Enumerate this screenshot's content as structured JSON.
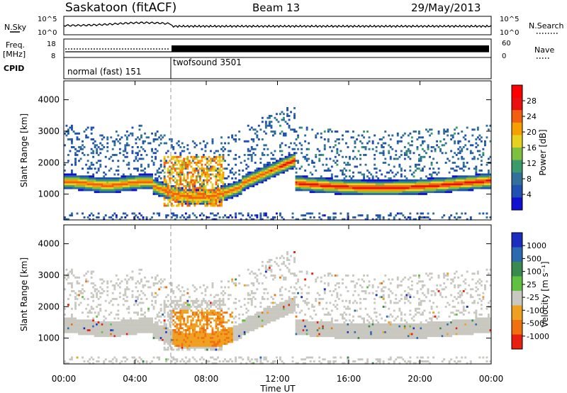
{
  "header": {
    "station": "Saskatoon (fitACF)",
    "beam": "Beam 13",
    "date": "29/May/2013"
  },
  "chart_data": [
    {
      "type": "line",
      "panel": "noise",
      "left_label": "N.Sky",
      "right_label": "N.Search",
      "left_ticks": [
        "10^5",
        "10^0"
      ],
      "right_ticks": [
        "10^5",
        "10^0"
      ]
    },
    {
      "type": "line",
      "panel": "frequency",
      "left_label_1": "Freq.",
      "left_label_2": "[MHz]",
      "right_label": "Nave",
      "left_ticks": [
        "18",
        "8"
      ],
      "right_ticks": [
        "60",
        "0"
      ]
    },
    {
      "type": "table",
      "panel": "cpid",
      "label": "CPID",
      "modes": [
        {
          "name": "normal (fast) 151",
          "start_hour": 0,
          "end_hour": 6
        },
        {
          "name": "twofsound 3501",
          "start_hour": 6,
          "end_hour": 24
        }
      ]
    },
    {
      "type": "heatmap",
      "panel": "power",
      "ylabel": "Slant Range [km]",
      "ylim": [
        180,
        4600
      ],
      "yticks": [
        "4000",
        "3000",
        "2000",
        "1000"
      ],
      "colorbar_label": "Power [dB]",
      "colorbar_ticks": [
        "28",
        "24",
        "20",
        "16",
        "12",
        "8",
        "4"
      ],
      "colors": [
        "#1010d0",
        "#2050b0",
        "#30709a",
        "#3a9a6a",
        "#80c040",
        "#e8d020",
        "#f5a000",
        "#f06010",
        "#e81010",
        "#ff0000"
      ]
    },
    {
      "type": "heatmap",
      "panel": "velocity",
      "ylabel": "Slant Range [km]",
      "ylim": [
        180,
        4600
      ],
      "yticks": [
        "4000",
        "3000",
        "2000",
        "1000"
      ],
      "colorbar_label": "Velocity [m s⁻¹]",
      "colorbar_ticks": [
        "1000",
        "500",
        "100",
        "25",
        "-25",
        "-100",
        "-500",
        "-1000"
      ],
      "colors": [
        "#1c2cc0",
        "#2c6ab0",
        "#3a8a50",
        "#60c040",
        "#c8c8c0",
        "#f0a020",
        "#f07010",
        "#e82010"
      ]
    }
  ],
  "time_axis": {
    "xlabel": "Time UT",
    "xlim": [
      0,
      24
    ],
    "ticks": [
      "00:00",
      "04:00",
      "08:00",
      "12:00",
      "16:00",
      "20:00",
      "00:00"
    ]
  }
}
